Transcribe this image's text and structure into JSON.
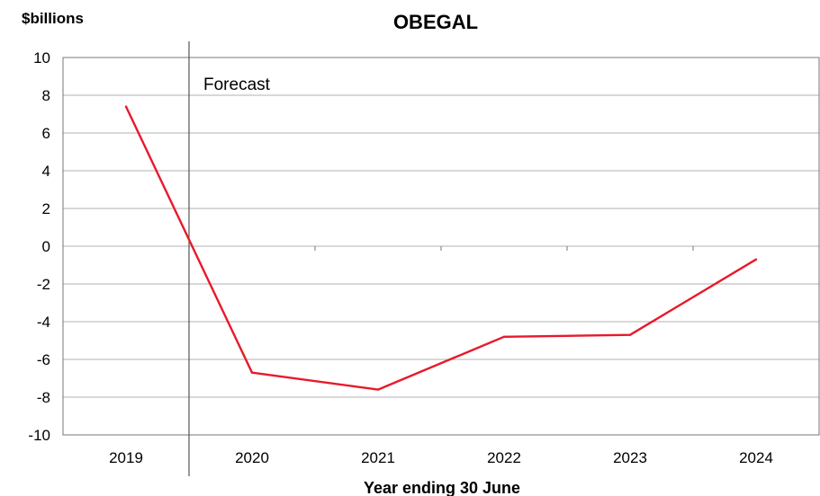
{
  "chart_data": {
    "type": "line",
    "title": "OBEGAL",
    "ylabel": "$billions",
    "xlabel": "Year ending 30 June",
    "categories": [
      "2019",
      "2020",
      "2021",
      "2022",
      "2023",
      "2024"
    ],
    "series": [
      {
        "values": [
          7.4,
          -6.7,
          -7.6,
          -4.8,
          -4.7,
          -0.7
        ],
        "color": "#e8192c"
      }
    ],
    "ylim": [
      -10,
      10
    ],
    "yticks": [
      10,
      8,
      6,
      4,
      2,
      0,
      -2,
      -4,
      -6,
      -8,
      -10
    ],
    "grid": true,
    "annotation": {
      "text": "Forecast",
      "marker_between": [
        "2019",
        "2020"
      ]
    }
  }
}
